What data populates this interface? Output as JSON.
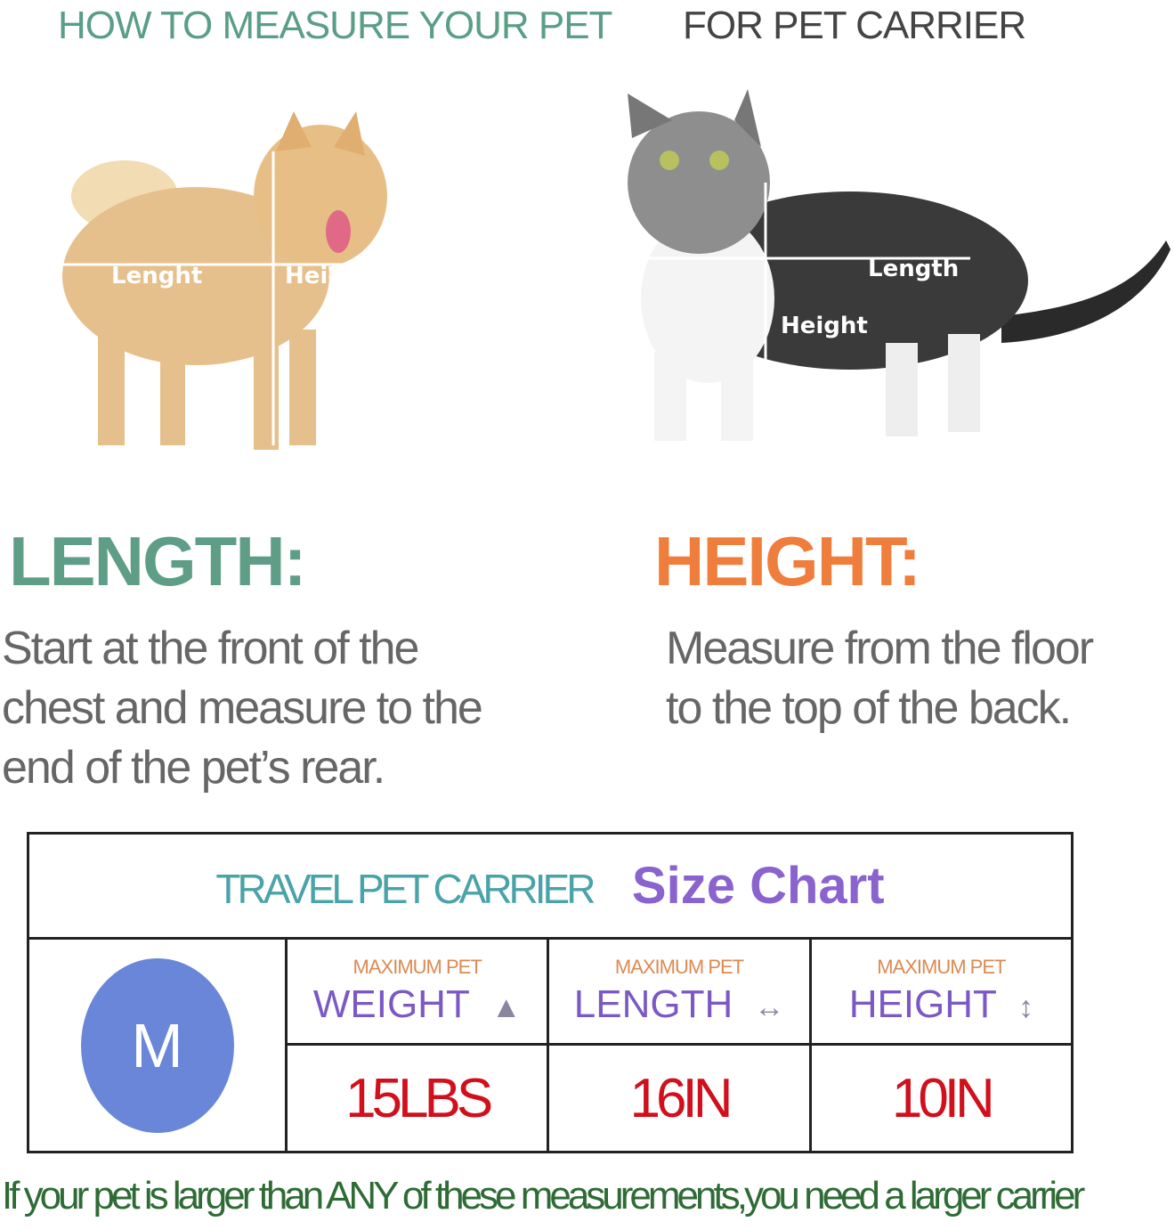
{
  "header": {
    "left": "HOW TO MEASURE YOUR PET",
    "right": "FOR PET CARRIER"
  },
  "dog": {
    "length_label": "Lenght",
    "height_label": "Height"
  },
  "cat": {
    "length_label": "Length",
    "height_label": "Height"
  },
  "length": {
    "title": "LENGTH:",
    "lines": [
      "Start at the front of the",
      "chest and measure to the",
      "end of the pet’s rear."
    ]
  },
  "height": {
    "title": "HEIGHT:",
    "lines": [
      "Measure from the floor",
      "to the top of the back."
    ]
  },
  "table": {
    "title_a": "TRAVEL PET CARRIER",
    "title_b": "Size Chart",
    "size": "M",
    "columns": [
      {
        "small": "MAXIMUM PET",
        "big": "WEIGHT",
        "icon": "weight-icon",
        "glyph": "▲",
        "value": "15LBS"
      },
      {
        "small": "MAXIMUM PET",
        "big": "LENGTH",
        "icon": "horizontal-arrow-icon",
        "glyph": "↔",
        "value": "16IN"
      },
      {
        "small": "MAXIMUM PET",
        "big": "HEIGHT",
        "icon": "vertical-arrow-icon",
        "glyph": "↕",
        "value": "10IN"
      }
    ]
  },
  "footer": "If your pet is larger than ANY of these measurements,you need a larger carrier",
  "colors": {
    "green": "#5a9e86",
    "orange": "#ef7e3c",
    "purple": "#7b59c4",
    "red": "#d0101c",
    "circle": "#6a86d8",
    "footer": "#2e6b35"
  }
}
